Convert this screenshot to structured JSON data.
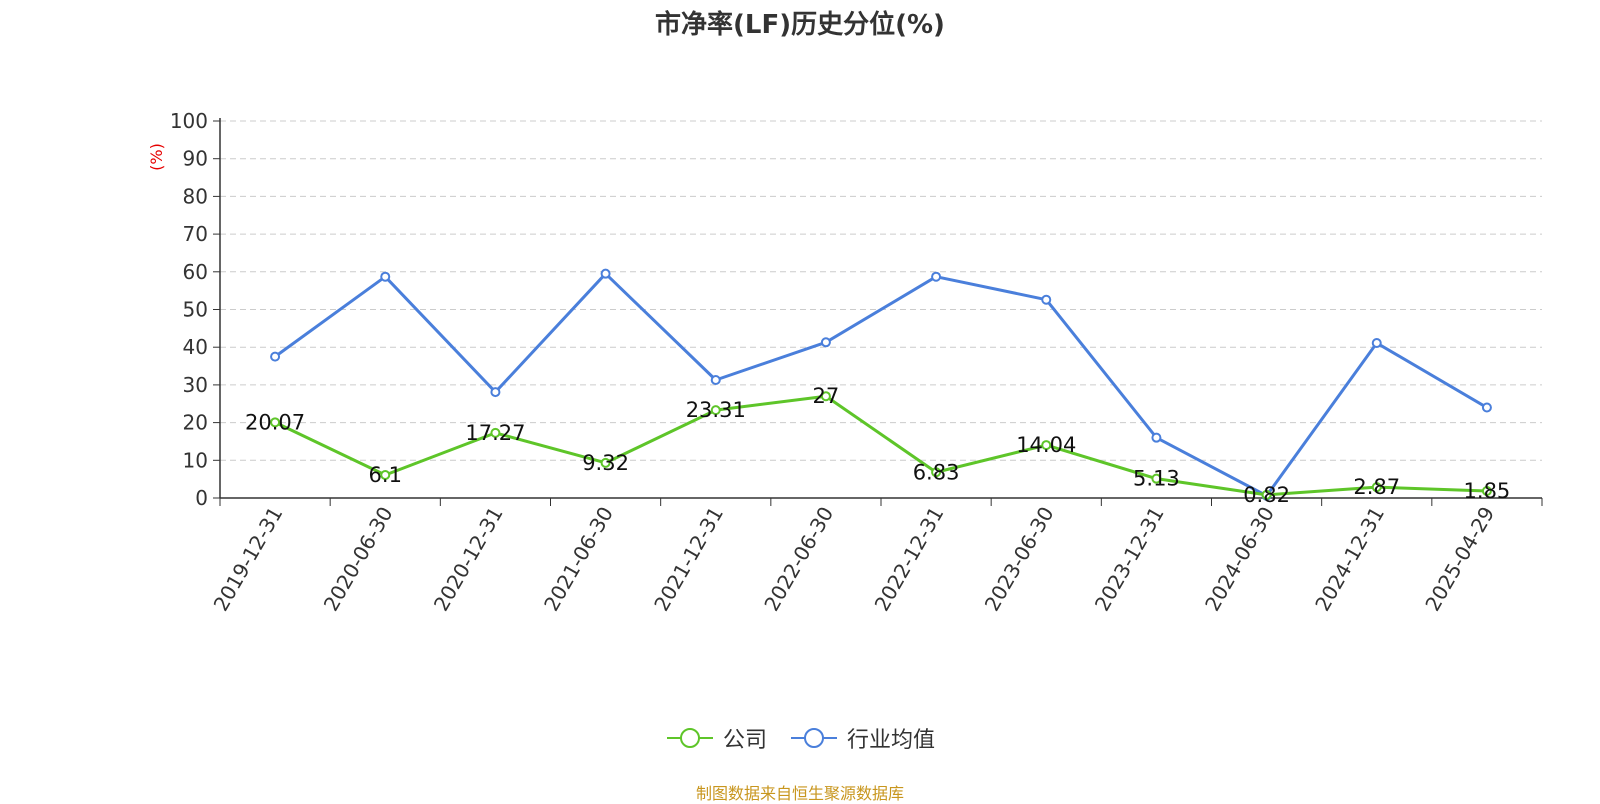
{
  "chart_data": {
    "type": "line",
    "title": "市净率(LF)历史分位(%)",
    "ylabel": "(%)",
    "ylim": [
      0,
      100
    ],
    "yticks": [
      0,
      10,
      20,
      30,
      40,
      50,
      60,
      70,
      80,
      90,
      100
    ],
    "categories": [
      "2019-12-31",
      "2020-06-30",
      "2020-12-31",
      "2021-06-30",
      "2021-12-31",
      "2022-06-30",
      "2022-12-31",
      "2023-06-30",
      "2023-12-31",
      "2024-06-30",
      "2024-12-31",
      "2025-04-29"
    ],
    "series": [
      {
        "name": "公司",
        "color": "#5ec529",
        "values": [
          20.07,
          6.1,
          17.27,
          9.32,
          23.31,
          27,
          6.83,
          14.04,
          5.13,
          0.82,
          2.87,
          1.85
        ],
        "labels": [
          "20.07",
          "6.1",
          "17.27",
          "9.32",
          "23.31",
          "27",
          "6.83",
          "14.04",
          "5.13",
          "0.82",
          "2.87",
          "1.85"
        ],
        "show_labels": true
      },
      {
        "name": "行业均值",
        "color": "#4a7fdb",
        "values": [
          37.5,
          58.7,
          28.1,
          59.5,
          31.3,
          41.3,
          58.7,
          52.6,
          16.0,
          0.6,
          41.1,
          24.0
        ],
        "show_labels": false
      }
    ],
    "grid": true,
    "legend": "bottom-center"
  },
  "source_text": "制图数据来自恒生聚源数据库",
  "colors": {
    "axis_label": "#e60000",
    "source": "#c8961e"
  }
}
